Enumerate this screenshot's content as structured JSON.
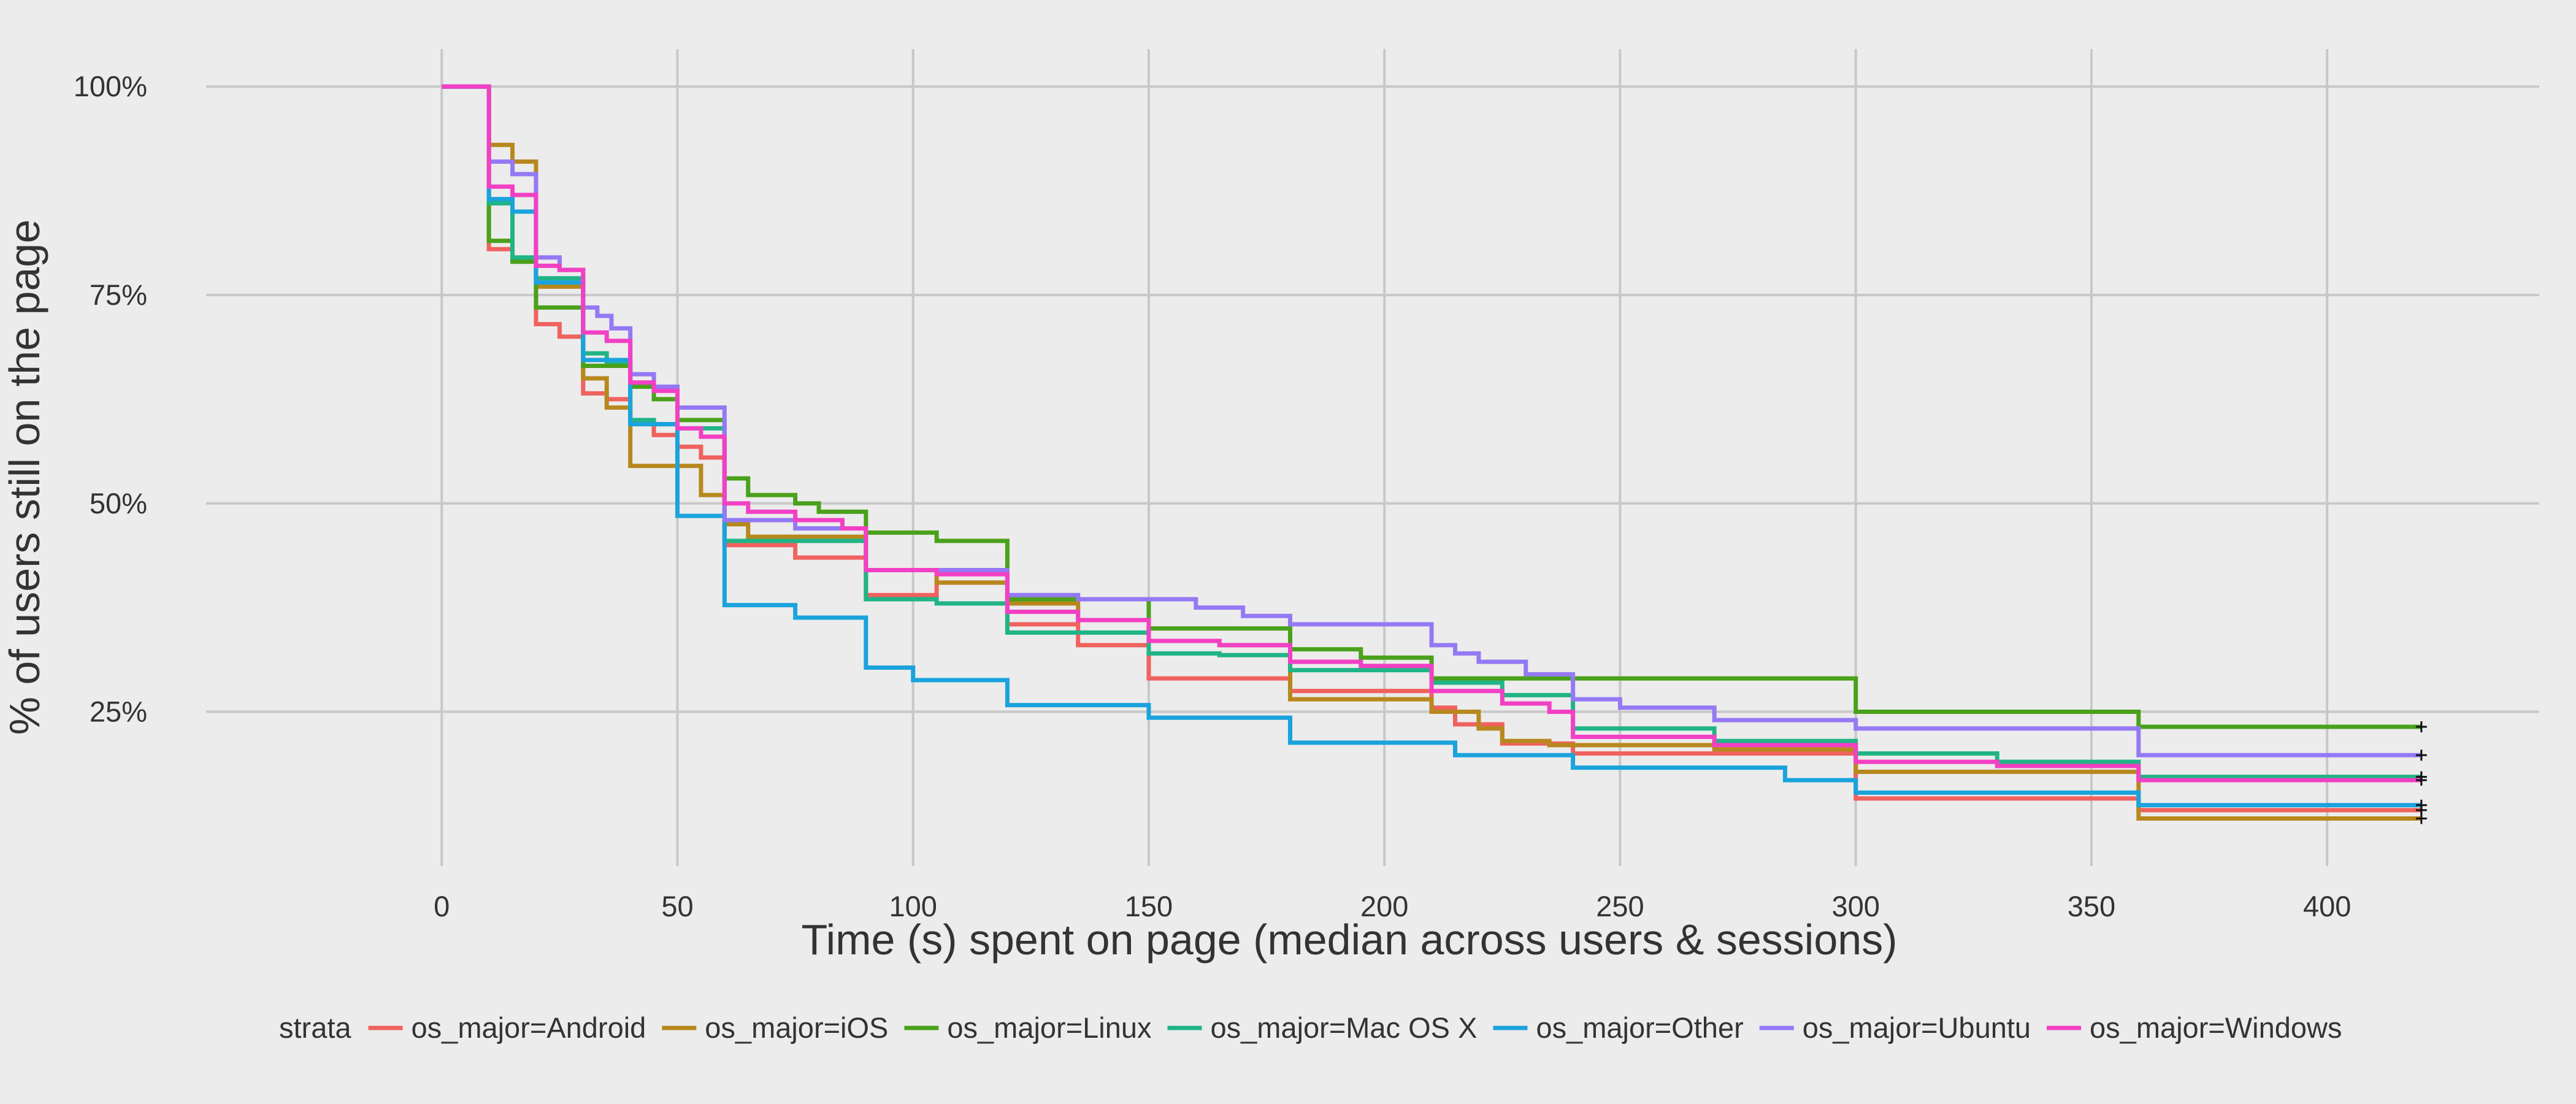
{
  "chart_data": {
    "type": "line",
    "step": true,
    "title": "",
    "xlabel": "Time (s) spent on page (median across users & sessions)",
    "ylabel": "% of users still on the page",
    "xlim": [
      -50,
      445
    ],
    "ylim": [
      0.065,
      1.045
    ],
    "x_ticks": [
      0,
      50,
      100,
      150,
      200,
      250,
      300,
      350,
      400
    ],
    "x_tick_labels": [
      "0",
      "50",
      "100",
      "150",
      "200",
      "250",
      "300",
      "350",
      "400"
    ],
    "y_ticks": [
      1.0,
      0.75,
      0.5,
      0.25
    ],
    "y_tick_labels": [
      "100%",
      "75%",
      "50%",
      "25%"
    ],
    "grid": true,
    "censor_mark": "+",
    "legend": {
      "title": "strata",
      "position": "bottom"
    },
    "series": [
      {
        "name": "os_major=Android",
        "color": "#f0625e",
        "points": [
          [
            0,
            1.0
          ],
          [
            10,
            0.805
          ],
          [
            15,
            0.79
          ],
          [
            20,
            0.715
          ],
          [
            25,
            0.7
          ],
          [
            30,
            0.632
          ],
          [
            35,
            0.625
          ],
          [
            40,
            0.598
          ],
          [
            45,
            0.582
          ],
          [
            50,
            0.568
          ],
          [
            55,
            0.555
          ],
          [
            60,
            0.45
          ],
          [
            75,
            0.435
          ],
          [
            90,
            0.39
          ],
          [
            105,
            0.405
          ],
          [
            120,
            0.355
          ],
          [
            135,
            0.33
          ],
          [
            150,
            0.29
          ],
          [
            180,
            0.275
          ],
          [
            210,
            0.255
          ],
          [
            215,
            0.235
          ],
          [
            225,
            0.212
          ],
          [
            240,
            0.2
          ],
          [
            270,
            0.2
          ],
          [
            300,
            0.146
          ],
          [
            360,
            0.132
          ],
          [
            420,
            0.132
          ]
        ],
        "censored_at": [
          [
            420,
            0.132
          ]
        ]
      },
      {
        "name": "os_major=iOS",
        "color": "#b7881e",
        "points": [
          [
            0,
            1.0
          ],
          [
            10,
            0.93
          ],
          [
            15,
            0.91
          ],
          [
            20,
            0.76
          ],
          [
            30,
            0.65
          ],
          [
            35,
            0.615
          ],
          [
            40,
            0.545
          ],
          [
            55,
            0.51
          ],
          [
            60,
            0.475
          ],
          [
            65,
            0.46
          ],
          [
            90,
            0.42
          ],
          [
            105,
            0.405
          ],
          [
            120,
            0.38
          ],
          [
            135,
            0.36
          ],
          [
            150,
            0.335
          ],
          [
            165,
            0.33
          ],
          [
            180,
            0.265
          ],
          [
            210,
            0.25
          ],
          [
            220,
            0.23
          ],
          [
            225,
            0.215
          ],
          [
            235,
            0.21
          ],
          [
            270,
            0.205
          ],
          [
            300,
            0.178
          ],
          [
            360,
            0.122
          ],
          [
            420,
            0.122
          ]
        ],
        "censored_at": [
          [
            420,
            0.122
          ]
        ]
      },
      {
        "name": "os_major=Linux",
        "color": "#4aa11b",
        "points": [
          [
            0,
            1.0
          ],
          [
            10,
            0.815
          ],
          [
            15,
            0.79
          ],
          [
            20,
            0.735
          ],
          [
            30,
            0.665
          ],
          [
            40,
            0.64
          ],
          [
            45,
            0.625
          ],
          [
            50,
            0.6
          ],
          [
            60,
            0.53
          ],
          [
            65,
            0.51
          ],
          [
            75,
            0.5
          ],
          [
            80,
            0.49
          ],
          [
            90,
            0.465
          ],
          [
            105,
            0.455
          ],
          [
            120,
            0.385
          ],
          [
            150,
            0.35
          ],
          [
            180,
            0.325
          ],
          [
            195,
            0.315
          ],
          [
            210,
            0.29
          ],
          [
            300,
            0.25
          ],
          [
            360,
            0.232
          ],
          [
            420,
            0.232
          ]
        ],
        "censored_at": [
          [
            420,
            0.232
          ]
        ]
      },
      {
        "name": "os_major=Mac OS X",
        "color": "#20b486",
        "points": [
          [
            0,
            1.0
          ],
          [
            10,
            0.86
          ],
          [
            15,
            0.795
          ],
          [
            20,
            0.77
          ],
          [
            30,
            0.68
          ],
          [
            35,
            0.67
          ],
          [
            40,
            0.6
          ],
          [
            45,
            0.595
          ],
          [
            50,
            0.59
          ],
          [
            60,
            0.455
          ],
          [
            90,
            0.385
          ],
          [
            105,
            0.38
          ],
          [
            120,
            0.345
          ],
          [
            150,
            0.32
          ],
          [
            165,
            0.318
          ],
          [
            180,
            0.3
          ],
          [
            210,
            0.285
          ],
          [
            225,
            0.27
          ],
          [
            240,
            0.23
          ],
          [
            270,
            0.215
          ],
          [
            300,
            0.2
          ],
          [
            330,
            0.19
          ],
          [
            360,
            0.172
          ],
          [
            420,
            0.172
          ]
        ],
        "censored_at": [
          [
            420,
            0.172
          ]
        ]
      },
      {
        "name": "os_major=Other",
        "color": "#1aa3dc",
        "points": [
          [
            0,
            1.0
          ],
          [
            10,
            0.865
          ],
          [
            15,
            0.85
          ],
          [
            20,
            0.765
          ],
          [
            30,
            0.672
          ],
          [
            40,
            0.595
          ],
          [
            50,
            0.485
          ],
          [
            60,
            0.378
          ],
          [
            75,
            0.363
          ],
          [
            90,
            0.303
          ],
          [
            100,
            0.288
          ],
          [
            120,
            0.258
          ],
          [
            150,
            0.243
          ],
          [
            180,
            0.213
          ],
          [
            215,
            0.198
          ],
          [
            240,
            0.183
          ],
          [
            285,
            0.168
          ],
          [
            300,
            0.153
          ],
          [
            360,
            0.138
          ],
          [
            420,
            0.138
          ]
        ],
        "censored_at": [
          [
            420,
            0.138
          ]
        ]
      },
      {
        "name": "os_major=Ubuntu",
        "color": "#9479f5",
        "points": [
          [
            0,
            1.0
          ],
          [
            10,
            0.91
          ],
          [
            15,
            0.895
          ],
          [
            20,
            0.795
          ],
          [
            25,
            0.78
          ],
          [
            30,
            0.735
          ],
          [
            33,
            0.725
          ],
          [
            36,
            0.71
          ],
          [
            40,
            0.655
          ],
          [
            45,
            0.64
          ],
          [
            50,
            0.615
          ],
          [
            60,
            0.48
          ],
          [
            75,
            0.47
          ],
          [
            90,
            0.42
          ],
          [
            120,
            0.39
          ],
          [
            135,
            0.385
          ],
          [
            160,
            0.375
          ],
          [
            170,
            0.365
          ],
          [
            180,
            0.355
          ],
          [
            210,
            0.33
          ],
          [
            215,
            0.32
          ],
          [
            220,
            0.31
          ],
          [
            230,
            0.295
          ],
          [
            240,
            0.265
          ],
          [
            250,
            0.255
          ],
          [
            270,
            0.24
          ],
          [
            300,
            0.23
          ],
          [
            360,
            0.198
          ],
          [
            420,
            0.198
          ]
        ],
        "censored_at": [
          [
            420,
            0.198
          ]
        ]
      },
      {
        "name": "os_major=Windows",
        "color": "#f240c4",
        "points": [
          [
            0,
            1.0
          ],
          [
            10,
            0.88
          ],
          [
            15,
            0.87
          ],
          [
            20,
            0.785
          ],
          [
            25,
            0.78
          ],
          [
            30,
            0.705
          ],
          [
            35,
            0.695
          ],
          [
            40,
            0.645
          ],
          [
            45,
            0.635
          ],
          [
            50,
            0.59
          ],
          [
            55,
            0.58
          ],
          [
            60,
            0.5
          ],
          [
            65,
            0.49
          ],
          [
            75,
            0.48
          ],
          [
            85,
            0.47
          ],
          [
            90,
            0.42
          ],
          [
            105,
            0.415
          ],
          [
            120,
            0.37
          ],
          [
            135,
            0.36
          ],
          [
            150,
            0.335
          ],
          [
            165,
            0.33
          ],
          [
            180,
            0.31
          ],
          [
            195,
            0.305
          ],
          [
            210,
            0.275
          ],
          [
            225,
            0.26
          ],
          [
            235,
            0.25
          ],
          [
            240,
            0.22
          ],
          [
            270,
            0.21
          ],
          [
            300,
            0.19
          ],
          [
            330,
            0.185
          ],
          [
            360,
            0.168
          ],
          [
            420,
            0.168
          ]
        ],
        "censored_at": [
          [
            420,
            0.168
          ]
        ]
      }
    ]
  }
}
